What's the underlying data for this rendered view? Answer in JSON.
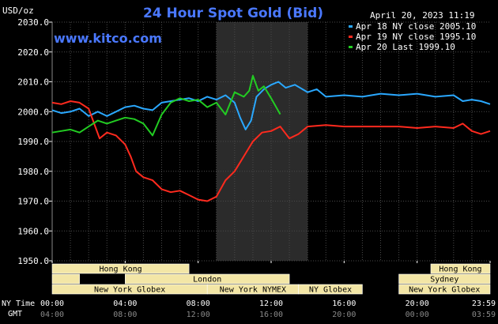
{
  "header": {
    "title": "24 Hour Spot Gold (Bid)",
    "timestamp": "April 20, 2023 11:19",
    "unit": "USD/oz",
    "website": "www.kitco.com"
  },
  "colors": {
    "background": "#000000",
    "grid": "#4a4a4a",
    "shade": "#2b2b2b",
    "apr18": "#2aa8ff",
    "apr19": "#ff2a1e",
    "apr20": "#22cc22",
    "session_bar": "#f3e6a6"
  },
  "sessions": {
    "row1": [
      {
        "name": "Hong Kong",
        "start": 0,
        "end": 7.5
      },
      {
        "name": "Hong Kong",
        "start": 20.75,
        "end": 24
      }
    ],
    "row2": [
      {
        "name": "",
        "start": 0,
        "end": 1.5
      },
      {
        "name": "London",
        "start": 4.0,
        "end": 13.0
      },
      {
        "name": "Sydney",
        "start": 19.0,
        "end": 24
      }
    ],
    "row3": [
      {
        "name": "New York Globex",
        "start": 0,
        "end": 8.5
      },
      {
        "name": "New York NYMEX",
        "start": 8.5,
        "end": 13.5
      },
      {
        "name": "NY Globex",
        "start": 13.5,
        "end": 17.0
      },
      {
        "name": "New York Globex",
        "start": 19.0,
        "end": 24
      }
    ]
  },
  "time_axis": {
    "ny_label": "NY Time",
    "gmt_label": "GMT",
    "ny_ticks": [
      "00:00",
      "04:00",
      "08:00",
      "12:00",
      "16:00",
      "20:00",
      "23:59"
    ],
    "gmt_ticks": [
      "04:00",
      "08:00",
      "12:00",
      "16:00",
      "20:00",
      "00:00",
      "03:59"
    ]
  },
  "chart_data": {
    "type": "line",
    "title": "24 Hour Spot Gold (Bid)",
    "ylabel": "USD/oz",
    "xlabel": "NY Time",
    "xlim": [
      0,
      24
    ],
    "ylim": [
      1950,
      2030
    ],
    "y_ticks": [
      "2030.0",
      "2020.0",
      "2010.0",
      "2000.0",
      "1990.0",
      "1980.0",
      "1970.0",
      "1960.0",
      "1950.0"
    ],
    "grid": true,
    "legend_position": "top-right",
    "shaded_interval": [
      9.0,
      14.0
    ],
    "series": [
      {
        "name": "Apr 18 NY close 2005.10",
        "color": "#2aa8ff",
        "points": [
          [
            0,
            2000.5
          ],
          [
            0.5,
            1999.5
          ],
          [
            1.0,
            2000
          ],
          [
            1.5,
            2001
          ],
          [
            2.0,
            1998.5
          ],
          [
            2.5,
            2000
          ],
          [
            3.0,
            1998.5
          ],
          [
            3.5,
            2000
          ],
          [
            4.0,
            2001.5
          ],
          [
            4.5,
            2002
          ],
          [
            5.0,
            2001
          ],
          [
            5.5,
            2000.5
          ],
          [
            6.0,
            2003
          ],
          [
            6.5,
            2003.5
          ],
          [
            7.0,
            2004
          ],
          [
            7.5,
            2004.5
          ],
          [
            8.0,
            2003.5
          ],
          [
            8.5,
            2005
          ],
          [
            9.0,
            2004
          ],
          [
            9.5,
            2005.5
          ],
          [
            10.0,
            2003
          ],
          [
            10.3,
            1998
          ],
          [
            10.6,
            1994
          ],
          [
            10.9,
            1997
          ],
          [
            11.2,
            2005
          ],
          [
            11.6,
            2007.5
          ],
          [
            12.0,
            2009
          ],
          [
            12.4,
            2010
          ],
          [
            12.8,
            2008
          ],
          [
            13.3,
            2009
          ],
          [
            14.0,
            2006.5
          ],
          [
            14.5,
            2007.5
          ],
          [
            15.0,
            2005
          ],
          [
            16.0,
            2005.5
          ],
          [
            17.0,
            2005
          ],
          [
            18.0,
            2006
          ],
          [
            19.0,
            2005.5
          ],
          [
            20.0,
            2006
          ],
          [
            21.0,
            2005
          ],
          [
            22.0,
            2005.5
          ],
          [
            22.5,
            2003.5
          ],
          [
            23.0,
            2004
          ],
          [
            23.5,
            2003.5
          ],
          [
            24.0,
            2002.5
          ]
        ]
      },
      {
        "name": "Apr 19 NY close 1995.10",
        "color": "#ff2a1e",
        "points": [
          [
            0,
            2003
          ],
          [
            0.5,
            2002.5
          ],
          [
            1.0,
            2003.5
          ],
          [
            1.5,
            2003
          ],
          [
            2.0,
            2001
          ],
          [
            2.3,
            1996
          ],
          [
            2.6,
            1991
          ],
          [
            3.0,
            1993
          ],
          [
            3.5,
            1992
          ],
          [
            4.0,
            1989
          ],
          [
            4.3,
            1985
          ],
          [
            4.6,
            1980
          ],
          [
            5.0,
            1978
          ],
          [
            5.5,
            1977
          ],
          [
            6.0,
            1974
          ],
          [
            6.5,
            1973
          ],
          [
            7.0,
            1973.5
          ],
          [
            7.5,
            1972
          ],
          [
            8.0,
            1970.5
          ],
          [
            8.5,
            1970
          ],
          [
            9.0,
            1971.5
          ],
          [
            9.5,
            1977
          ],
          [
            10.0,
            1980
          ],
          [
            10.5,
            1985
          ],
          [
            11.0,
            1990
          ],
          [
            11.5,
            1993
          ],
          [
            12.0,
            1993.5
          ],
          [
            12.5,
            1995
          ],
          [
            13.0,
            1991
          ],
          [
            13.5,
            1992.5
          ],
          [
            14.0,
            1995
          ],
          [
            15.0,
            1995.5
          ],
          [
            16.0,
            1995
          ],
          [
            17.0,
            1995
          ],
          [
            18.0,
            1995
          ],
          [
            19.0,
            1995
          ],
          [
            20.0,
            1994.5
          ],
          [
            21.0,
            1995
          ],
          [
            22.0,
            1994.5
          ],
          [
            22.5,
            1996
          ],
          [
            23.0,
            1993.5
          ],
          [
            23.5,
            1992.5
          ],
          [
            24.0,
            1993.5
          ]
        ]
      },
      {
        "name": "Apr 20 Last 1999.10",
        "color": "#22cc22",
        "points": [
          [
            0,
            1993
          ],
          [
            0.5,
            1993.5
          ],
          [
            1.0,
            1994
          ],
          [
            1.5,
            1993
          ],
          [
            2.0,
            1995
          ],
          [
            2.5,
            1997
          ],
          [
            3.0,
            1996
          ],
          [
            3.5,
            1997
          ],
          [
            4.0,
            1998
          ],
          [
            4.5,
            1997.5
          ],
          [
            5.0,
            1996
          ],
          [
            5.5,
            1992
          ],
          [
            6.0,
            1999
          ],
          [
            6.5,
            2003
          ],
          [
            7.0,
            2004.5
          ],
          [
            7.5,
            2003.5
          ],
          [
            8.0,
            2004
          ],
          [
            8.5,
            2001.5
          ],
          [
            9.0,
            2003
          ],
          [
            9.5,
            1999
          ],
          [
            10.0,
            2006.5
          ],
          [
            10.5,
            2005
          ],
          [
            10.8,
            2007
          ],
          [
            11.0,
            2012
          ],
          [
            11.3,
            2007
          ],
          [
            11.6,
            2008.5
          ],
          [
            12.0,
            2004.5
          ],
          [
            12.5,
            1999.1
          ]
        ]
      }
    ]
  }
}
